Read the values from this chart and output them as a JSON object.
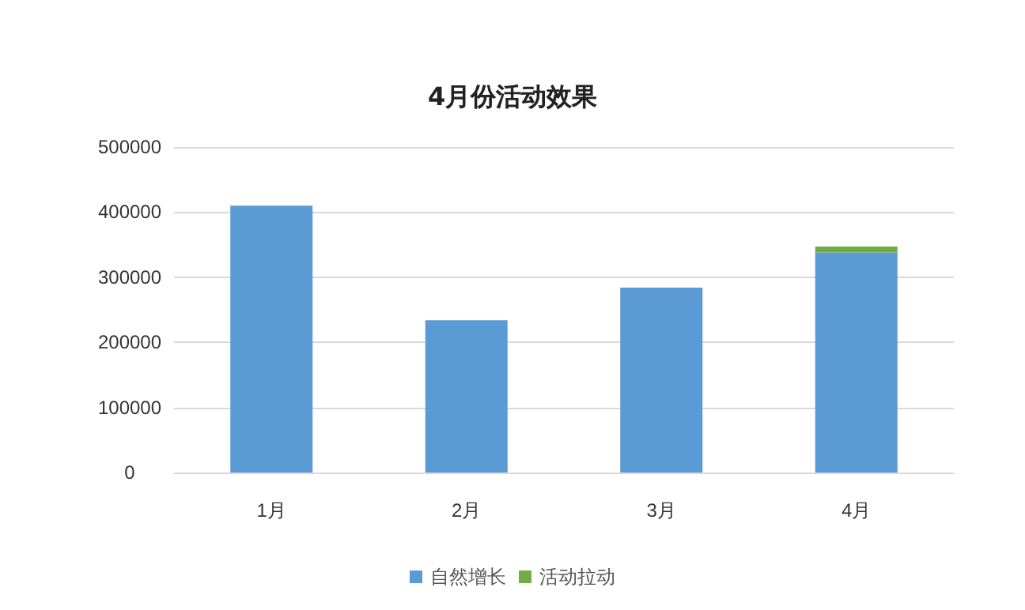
{
  "chart_data": {
    "type": "bar",
    "title": "4月份活动效果",
    "categories": [
      "1月",
      "2月",
      "3月",
      "4月"
    ],
    "stacked": true,
    "series": [
      {
        "name": "自然增长",
        "color": "#5b9bd5",
        "values": [
          410000,
          234000,
          284000,
          338000
        ]
      },
      {
        "name": "活动拉动",
        "color": "#70ad47",
        "values": [
          0,
          0,
          0,
          9000
        ]
      }
    ],
    "ylim": [
      0,
      500000
    ],
    "yticks": [
      0,
      100000,
      200000,
      300000,
      400000,
      500000
    ],
    "grid": "y",
    "legend": "bottom"
  }
}
